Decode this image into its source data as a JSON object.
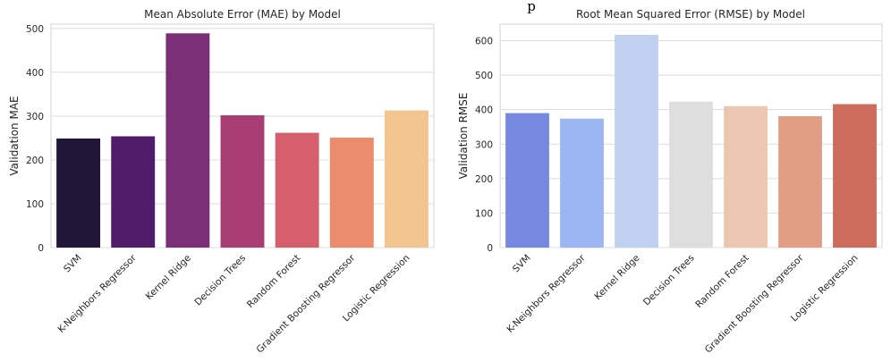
{
  "top_partial_text": "p",
  "chart_data": [
    {
      "type": "bar",
      "title": "Mean Absolute Error (MAE) by Model",
      "xlabel": "",
      "ylabel": "Validation MAE",
      "categories": [
        "SVM",
        "K-Neighbors Regressor",
        "Kernel Ridge",
        "Decision Trees",
        "Random Forest",
        "Gradient Boosting Regressor",
        "Logistic Regression"
      ],
      "values": [
        249,
        254,
        489,
        302,
        262,
        251,
        313
      ],
      "ylim": [
        0,
        510
      ],
      "yticks": [
        0,
        100,
        200,
        300,
        400,
        500
      ],
      "grid": true,
      "colors": [
        "#221638",
        "#501d6b",
        "#7a2f77",
        "#a83e74",
        "#d65f6e",
        "#eb8c6c",
        "#f1c490"
      ]
    },
    {
      "type": "bar",
      "title": "Root Mean Squared Error (RMSE) by Model",
      "xlabel": "",
      "ylabel": "Validation RMSE",
      "categories": [
        "SVM",
        "K-Neighbors Regressor",
        "Kernel Ridge",
        "Decision Trees",
        "Random Forest",
        "Gradient Boosting Regressor",
        "Logistic Regression"
      ],
      "values": [
        390,
        374,
        617,
        423,
        410,
        381,
        416
      ],
      "ylim": [
        0,
        648
      ],
      "yticks": [
        0,
        100,
        200,
        300,
        400,
        500,
        600
      ],
      "grid": true,
      "colors": [
        "#7489df",
        "#9bb6f3",
        "#bfd0f1",
        "#dedede",
        "#ecc6b0",
        "#e29e84",
        "#cd6b5c"
      ]
    }
  ]
}
